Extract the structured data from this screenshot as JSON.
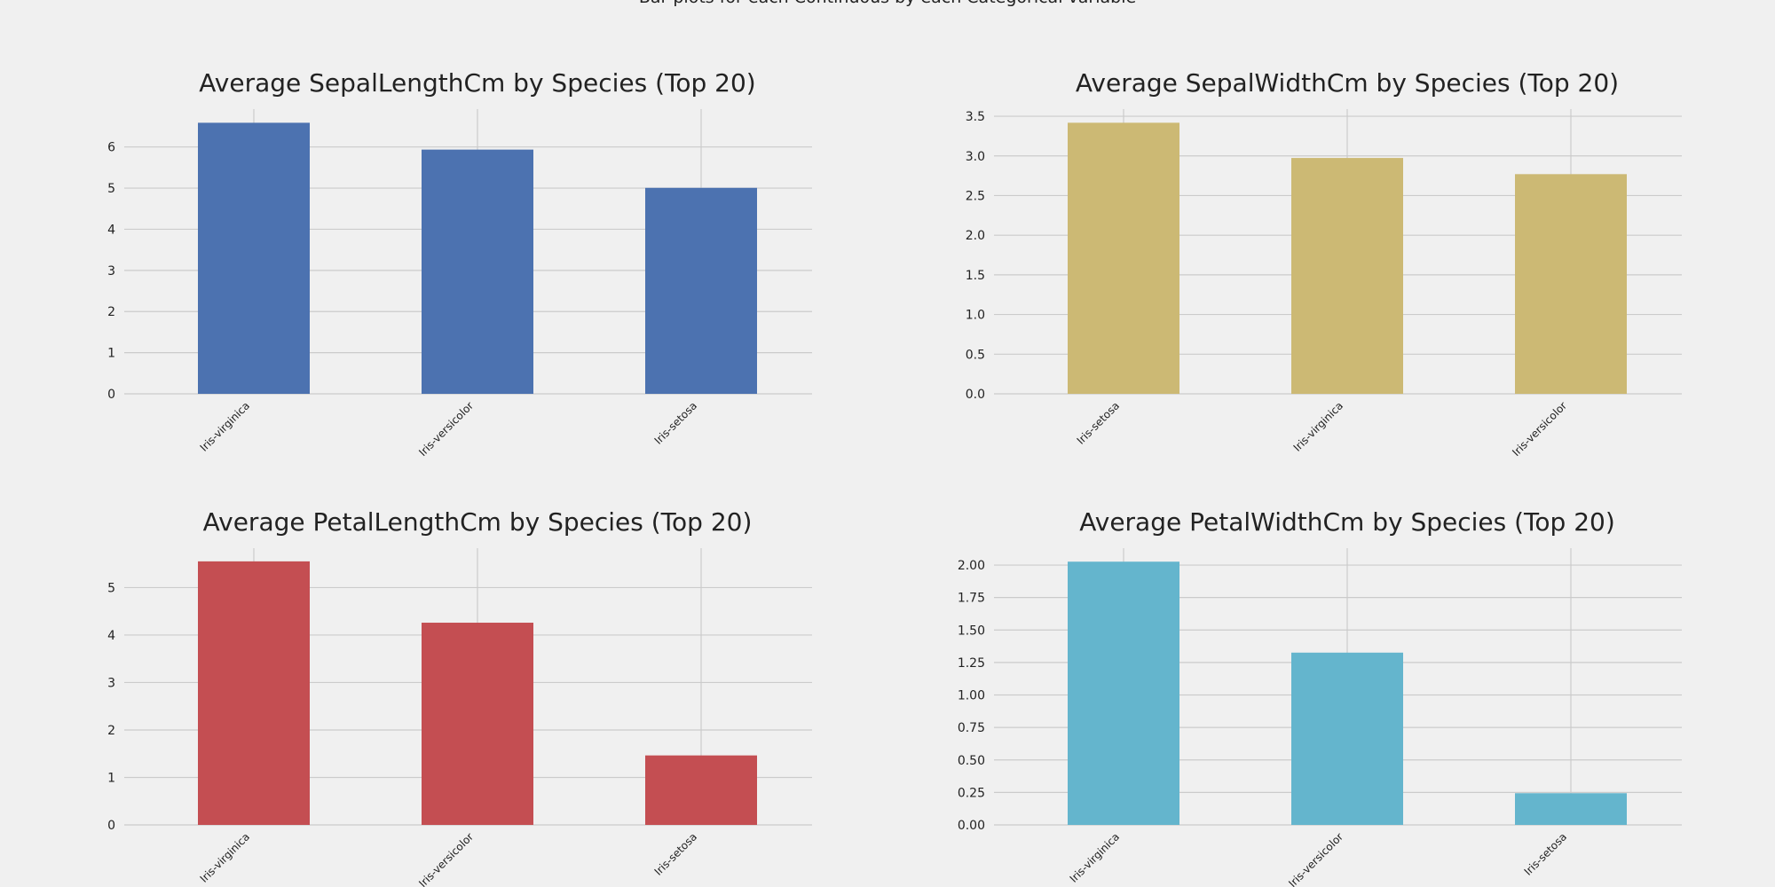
{
  "suptitle": "Bar plots for each Continuous by each Categorical variable",
  "chart_data": [
    {
      "type": "bar",
      "title": "Average SepalLengthCm by Species (Top 20)",
      "xlabel": "",
      "ylabel": "",
      "categories": [
        "Iris-virginica",
        "Iris-versicolor",
        "Iris-setosa"
      ],
      "values": [
        6.588,
        5.936,
        5.006
      ],
      "ylim": [
        0,
        6.92
      ],
      "yticks": [
        "0",
        "1",
        "2",
        "3",
        "4",
        "5",
        "6"
      ],
      "color": "#4c72b0",
      "grid": true
    },
    {
      "type": "bar",
      "title": "Average SepalWidthCm by Species (Top 20)",
      "xlabel": "",
      "ylabel": "",
      "categories": [
        "Iris-setosa",
        "Iris-virginica",
        "Iris-versicolor"
      ],
      "values": [
        3.418,
        2.974,
        2.77
      ],
      "ylim": [
        0,
        3.59
      ],
      "yticks": [
        "0.0",
        "0.5",
        "1.0",
        "1.5",
        "2.0",
        "2.5",
        "3.0",
        "3.5"
      ],
      "color": "#ccb974",
      "grid": true
    },
    {
      "type": "bar",
      "title": "Average PetalLengthCm by Species (Top 20)",
      "xlabel": "",
      "ylabel": "",
      "categories": [
        "Iris-virginica",
        "Iris-versicolor",
        "Iris-setosa"
      ],
      "values": [
        5.552,
        4.26,
        1.464
      ],
      "ylim": [
        0,
        5.83
      ],
      "yticks": [
        "0",
        "1",
        "2",
        "3",
        "4",
        "5"
      ],
      "color": "#c44e52",
      "grid": true
    },
    {
      "type": "bar",
      "title": "Average PetalWidthCm by Species (Top 20)",
      "xlabel": "",
      "ylabel": "",
      "categories": [
        "Iris-virginica",
        "Iris-versicolor",
        "Iris-setosa"
      ],
      "values": [
        2.026,
        1.326,
        0.244
      ],
      "ylim": [
        0,
        2.13
      ],
      "yticks": [
        "0.00",
        "0.25",
        "0.50",
        "0.75",
        "1.00",
        "1.25",
        "1.50",
        "1.75",
        "2.00"
      ],
      "color": "#64b5cd",
      "grid": true
    }
  ]
}
